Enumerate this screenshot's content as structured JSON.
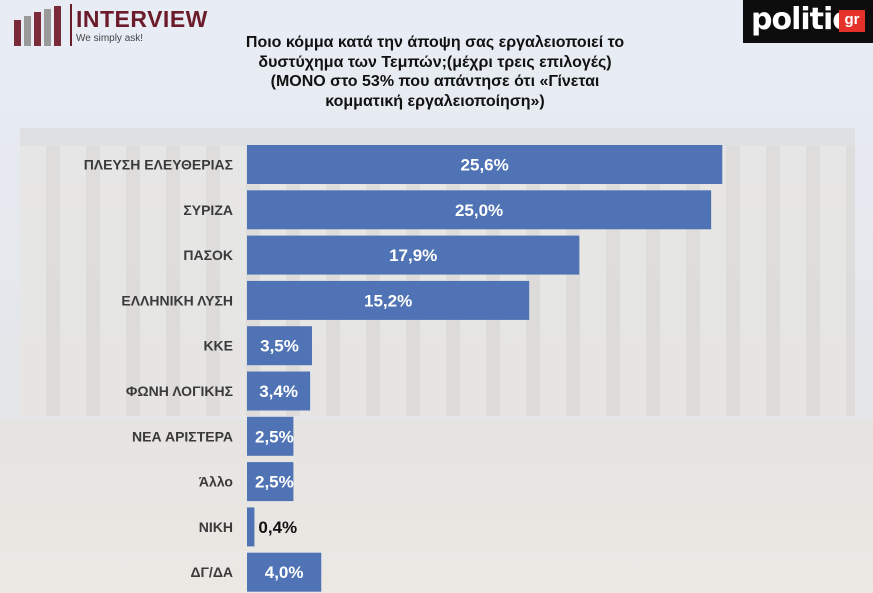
{
  "branding": {
    "left_logo": "INTERVIEW",
    "left_tagline": "We simply ask!",
    "right_logo": "politic",
    "right_logo_suffix": "gr"
  },
  "colors": {
    "bar": "#4f73b4",
    "label": "#3a3a3a"
  },
  "chart_data": {
    "type": "bar",
    "orientation": "horizontal",
    "title_lines": [
      "Ποιο κόμμα κατά την άποψη σας εργαλειοποιεί το",
      "δυστύχημα των Τεμπών;(μέχρι τρεις επιλογές)",
      "(ΜΟΝΟ στο 53% που απάντησε ότι «Γίνεται",
      "κομματική εργαλειοποίηση»)"
    ],
    "categories": [
      "ΠΛΕΥΣΗ ΕΛΕΥΘΕΡΙΑΣ",
      "ΣΥΡΙΖΑ",
      "ΠΑΣΟΚ",
      "ΕΛΛΗΝΙΚΗ ΛΥΣΗ",
      "ΚΚΕ",
      "ΦΩΝΗ ΛΟΓΙΚΗΣ",
      "ΝΕΑ ΑΡΙΣΤΕΡΑ",
      "Άλλο",
      "ΝΙΚΗ",
      "ΔΓ/ΔΑ"
    ],
    "values": [
      25.6,
      25.0,
      17.9,
      15.2,
      3.5,
      3.4,
      2.5,
      2.5,
      0.4,
      4.0
    ],
    "value_labels": [
      "25,6%",
      "25,0%",
      "17,9%",
      "15,2%",
      "3,5%",
      "3,4%",
      "2,5%",
      "2,5%",
      "0,4%",
      "4,0%"
    ],
    "xlim": [
      0,
      27.2
    ],
    "grid": false,
    "legend": "none"
  }
}
